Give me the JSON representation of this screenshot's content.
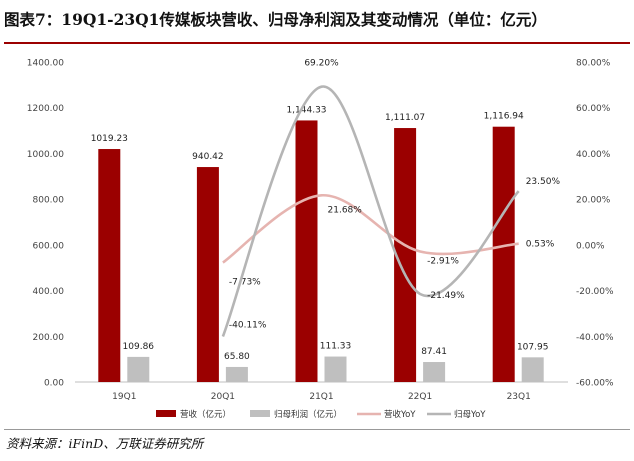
{
  "title": "图表7：19Q1-23Q1传媒板块营收、归母净利润及其变动情况（单位：亿元）",
  "source": "资料来源：iFinD、万联证券研究所",
  "colors": {
    "revenue": "#9b0000",
    "net_profit": "#bfbfbf",
    "revenue_yoy": "#e6b4b0",
    "net_profit_yoy": "#b5b5b5",
    "title_rule": "#9b0000"
  },
  "chart_data": {
    "type": "bar",
    "categories": [
      "19Q1",
      "20Q1",
      "21Q1",
      "22Q1",
      "23Q1"
    ],
    "series": [
      {
        "name": "营收（亿元）",
        "kind": "bar",
        "axis": "left",
        "values": [
          1019.23,
          940.42,
          1144.33,
          1111.07,
          1116.94
        ],
        "labels": [
          "1019.23",
          "940.42",
          "1,144.33",
          "1,111.07",
          "1,116.94"
        ]
      },
      {
        "name": "归母利润（亿元）",
        "kind": "bar",
        "axis": "left",
        "values": [
          109.86,
          65.8,
          111.33,
          87.41,
          107.95
        ],
        "labels": [
          "109.86",
          "65.80",
          "111.33",
          "87.41",
          "107.95"
        ]
      },
      {
        "name": "营收YoY",
        "kind": "line",
        "axis": "right",
        "values": [
          null,
          -7.73,
          21.68,
          -2.91,
          0.53
        ],
        "labels": [
          "",
          "-7.73%",
          "21.68%",
          "-2.91%",
          "0.53%"
        ]
      },
      {
        "name": "归母YoY",
        "kind": "line",
        "axis": "right",
        "values": [
          null,
          -40.11,
          69.2,
          -21.49,
          23.5
        ],
        "labels": [
          "",
          "-40.11%",
          "69.20%",
          "-21.49%",
          "23.50%"
        ]
      }
    ],
    "y_left": {
      "min": 0,
      "max": 1400,
      "step": 200,
      "ticks": [
        "0.00",
        "200.00",
        "400.00",
        "600.00",
        "800.00",
        "1000.00",
        "1200.00",
        "1400.00"
      ]
    },
    "y_right": {
      "min": -60,
      "max": 80,
      "step": 20,
      "ticks": [
        "-60.00%",
        "-40.00%",
        "-20.00%",
        "0.00%",
        "20.00%",
        "40.00%",
        "60.00%",
        "80.00%"
      ]
    },
    "grid": false,
    "legend_position": "bottom"
  }
}
